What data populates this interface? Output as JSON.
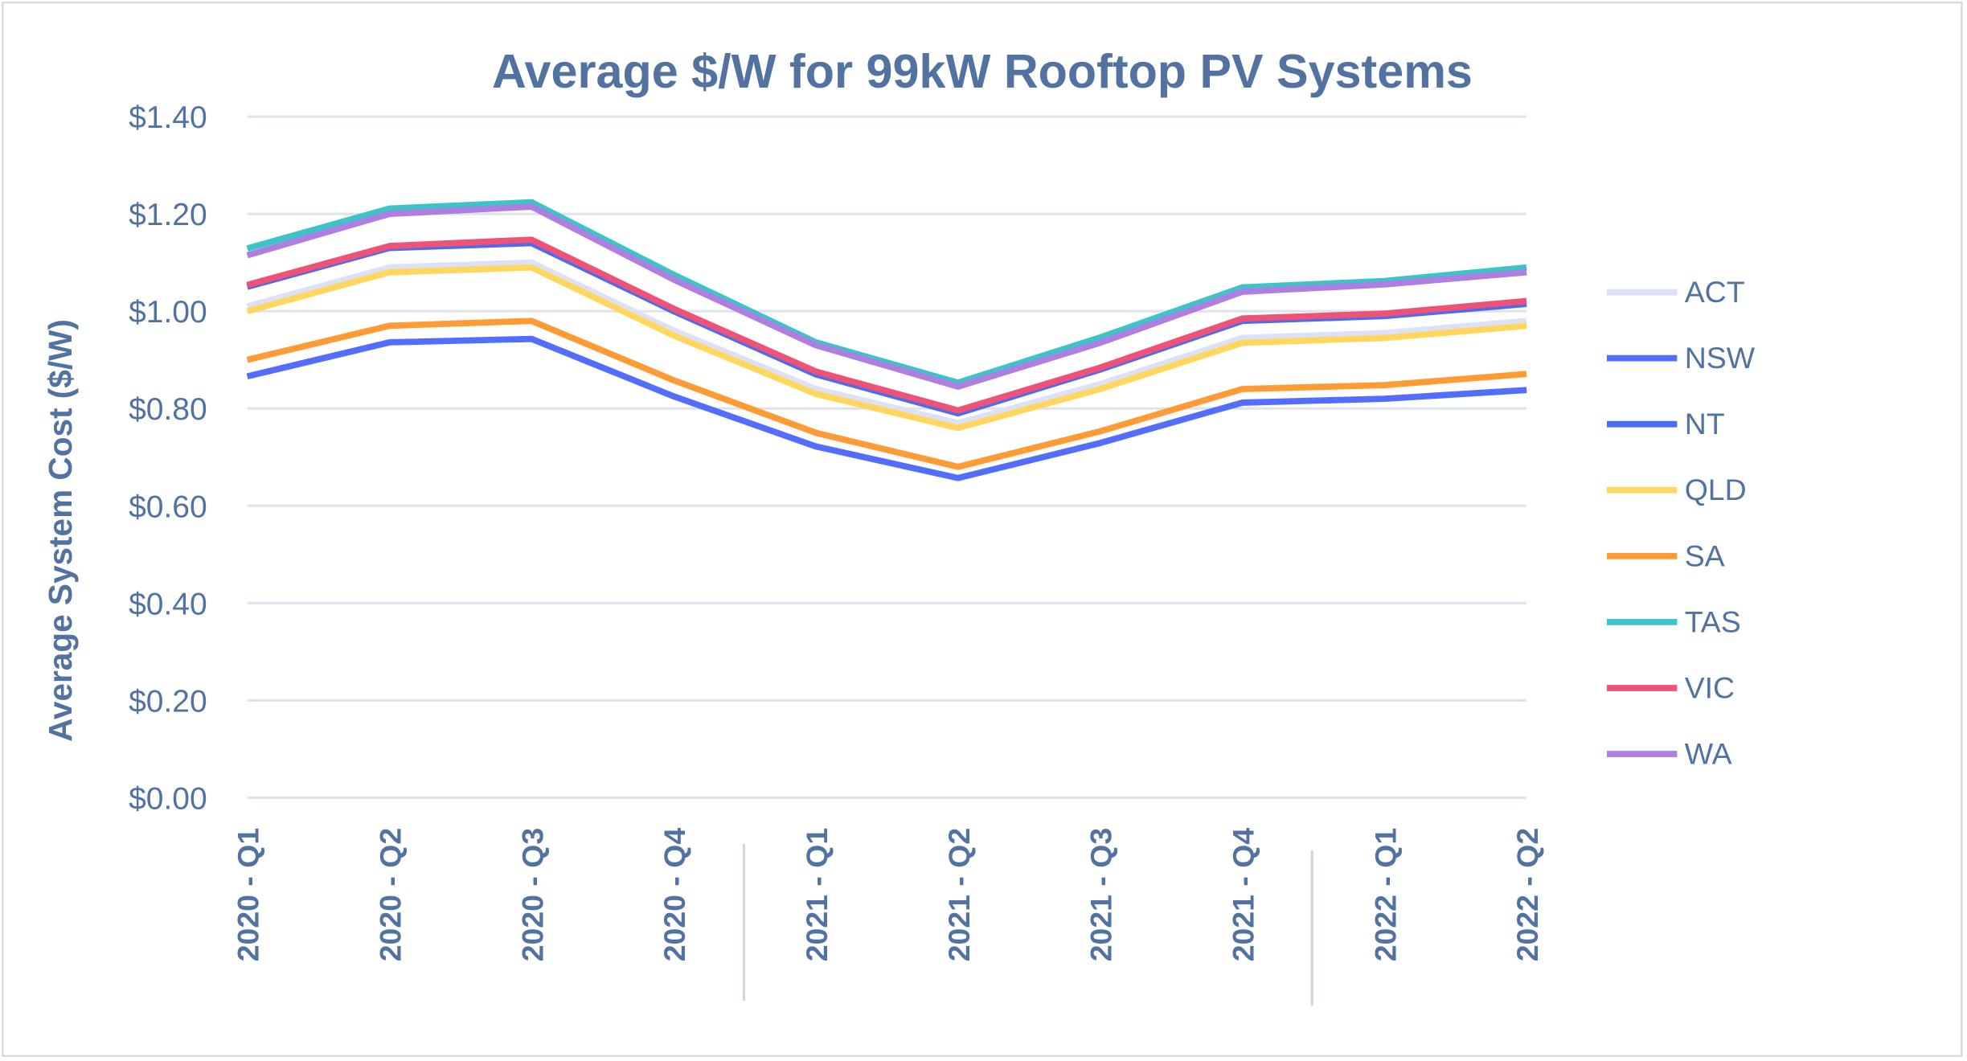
{
  "chart_data": {
    "type": "line",
    "title": "Average $/W for 99kW Rooftop PV Systems",
    "xlabel": "",
    "ylabel": "Average System Cost ($/W)",
    "ylim": [
      0,
      1.4
    ],
    "ytick_labels": [
      "$0.00",
      "$0.20",
      "$0.40",
      "$0.60",
      "$0.80",
      "$1.00",
      "$1.20",
      "$1.40"
    ],
    "ytick_values": [
      0,
      0.2,
      0.4,
      0.6,
      0.8,
      1.0,
      1.2,
      1.4
    ],
    "grid": true,
    "legend": "right",
    "categories": [
      "2020 - Q1",
      "2020 - Q2",
      "2020 - Q3",
      "2020 - Q4",
      "2021 - Q1",
      "2021 - Q2",
      "2021 - Q3",
      "2021 - Q4",
      "2022 - Q1",
      "2022 - Q2"
    ],
    "series": [
      {
        "name": "ACT",
        "color": "#dde1f8",
        "values": [
          1.01,
          1.09,
          1.1,
          0.96,
          0.84,
          0.77,
          0.85,
          0.945,
          0.955,
          0.98
        ]
      },
      {
        "name": "NSW",
        "color": "#536dfe",
        "values": [
          0.866,
          0.936,
          0.943,
          0.825,
          0.722,
          0.657,
          0.729,
          0.812,
          0.82,
          0.838
        ]
      },
      {
        "name": "NT",
        "color": "#4a6cf0",
        "values": [
          1.05,
          1.13,
          1.14,
          1.0,
          0.87,
          0.79,
          0.88,
          0.98,
          0.99,
          1.015
        ]
      },
      {
        "name": "QLD",
        "color": "#ffd75e",
        "values": [
          1.0,
          1.08,
          1.09,
          0.95,
          0.83,
          0.76,
          0.84,
          0.935,
          0.945,
          0.97
        ]
      },
      {
        "name": "SA",
        "color": "#ff9b35",
        "values": [
          0.9,
          0.97,
          0.98,
          0.858,
          0.75,
          0.68,
          0.753,
          0.84,
          0.848,
          0.871
        ]
      },
      {
        "name": "TAS",
        "color": "#3cc4c8",
        "values": [
          1.129,
          1.211,
          1.224,
          1.075,
          0.936,
          0.853,
          0.946,
          1.049,
          1.062,
          1.09
        ]
      },
      {
        "name": "VIC",
        "color": "#ef5277",
        "values": [
          1.054,
          1.134,
          1.147,
          1.005,
          0.876,
          0.796,
          0.884,
          0.985,
          0.995,
          1.021
        ]
      },
      {
        "name": "WA",
        "color": "#ae7fe0",
        "values": [
          1.115,
          1.2,
          1.215,
          1.065,
          0.93,
          0.845,
          0.935,
          1.04,
          1.055,
          1.08
        ]
      }
    ]
  }
}
